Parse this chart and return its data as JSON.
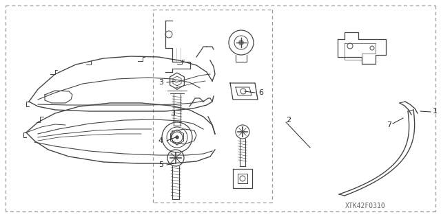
{
  "watermark": "XTK42F0310",
  "bg_color": "#ffffff",
  "line_color": "#444444",
  "dash_color": "#999999",
  "label_color": "#222222",
  "figsize": [
    6.4,
    3.19
  ],
  "dpi": 100
}
